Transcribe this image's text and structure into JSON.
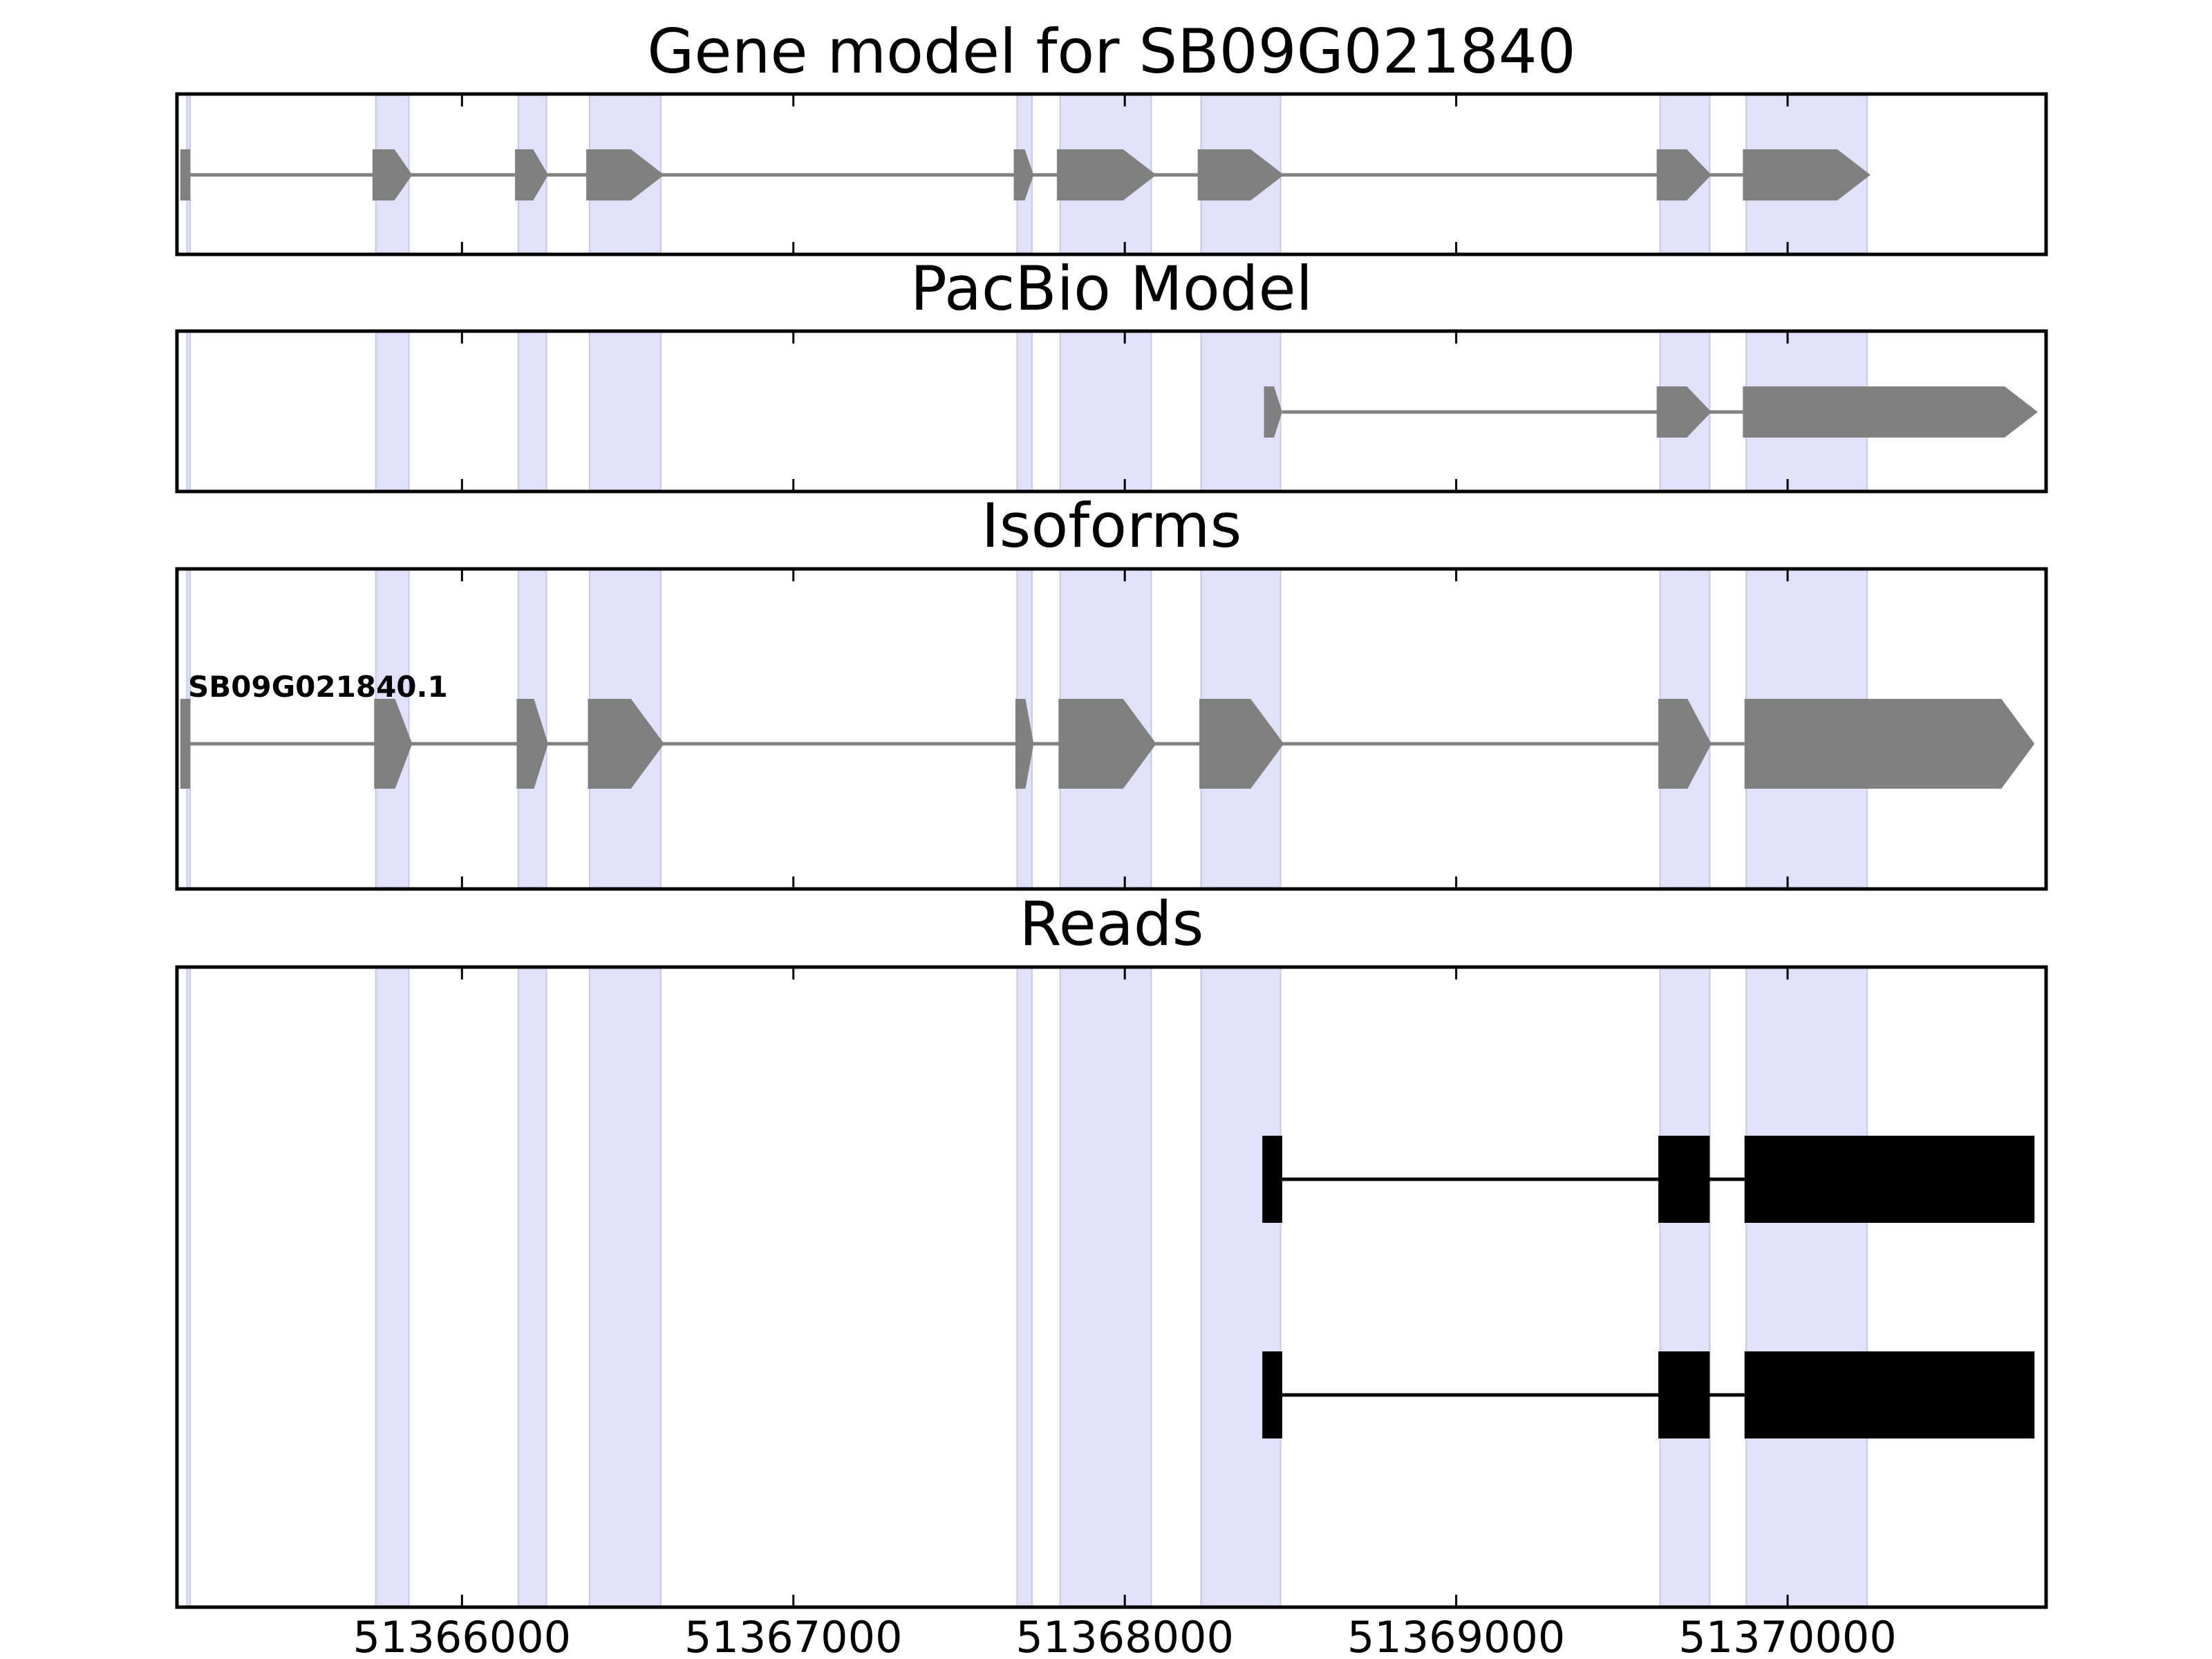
{
  "chart_data": {
    "type": "gene-model-tracks",
    "colors": {
      "highlight": "#e1e1fa",
      "highlight_edge": "#c8c8ee",
      "model": "#808080",
      "read": "#000000",
      "frame": "#000000"
    },
    "x_axis": {
      "range": [
        51365140,
        51370780
      ],
      "ticks": [
        51366000,
        51367000,
        51368000,
        51369000,
        51370000
      ],
      "tick_labels": [
        "51366000",
        "51367000",
        "51368000",
        "51369000",
        "51370000"
      ]
    },
    "highlight_regions": [
      [
        51365170,
        51365180
      ],
      [
        51365740,
        51365840
      ],
      [
        51366170,
        51366255
      ],
      [
        51366385,
        51366600
      ],
      [
        51367675,
        51367720
      ],
      [
        51367805,
        51368080
      ],
      [
        51368230,
        51368470
      ],
      [
        51369615,
        51369765
      ],
      [
        51369875,
        51370240
      ]
    ],
    "panels": [
      {
        "title": "Gene model for SB09G021840",
        "style": "arrow",
        "tracks": [
          {
            "label": "",
            "exons": [
              [
                51365150,
                51365180
              ],
              [
                51365730,
                51365850
              ],
              [
                51366160,
                51366260
              ],
              [
                51366375,
                51366610
              ],
              [
                51367665,
                51367725
              ],
              [
                51367795,
                51368095
              ],
              [
                51368220,
                51368480
              ],
              [
                51369605,
                51369770
              ],
              [
                51369865,
                51370250
              ]
            ]
          }
        ]
      },
      {
        "title": "PacBio Model",
        "style": "arrow",
        "tracks": [
          {
            "label": "",
            "exons": [
              [
                51368420,
                51368475
              ],
              [
                51369605,
                51369770
              ],
              [
                51369865,
                51370755
              ]
            ]
          }
        ]
      },
      {
        "title": "Isoforms",
        "style": "arrow",
        "tracks": [
          {
            "label": "SB09G021840.1",
            "exons": [
              [
                51365150,
                51365180
              ],
              [
                51365735,
                51365850
              ],
              [
                51366165,
                51366260
              ],
              [
                51366380,
                51366610
              ],
              [
                51367670,
                51367725
              ],
              [
                51367800,
                51368095
              ],
              [
                51368225,
                51368480
              ],
              [
                51369610,
                51369770
              ],
              [
                51369870,
                51370745
              ]
            ]
          }
        ]
      },
      {
        "title": "Reads",
        "style": "block",
        "tracks": [
          {
            "label": "",
            "exons": [
              [
                51368415,
                51368475
              ],
              [
                51369610,
                51369765
              ],
              [
                51369870,
                51370745
              ]
            ]
          },
          {
            "label": "",
            "exons": [
              [
                51368415,
                51368475
              ],
              [
                51369610,
                51369765
              ],
              [
                51369870,
                51370745
              ]
            ]
          }
        ]
      }
    ]
  }
}
